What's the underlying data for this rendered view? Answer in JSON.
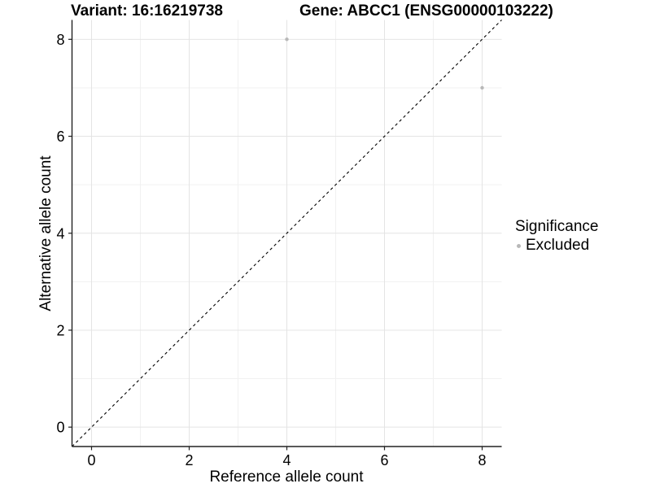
{
  "header": {
    "variant_title": "Variant: 16:16219738",
    "gene_title": "Gene: ABCC1 (ENSG00000103222)"
  },
  "axes": {
    "x_label": "Reference allele count",
    "y_label": "Alternative allele count"
  },
  "legend": {
    "title": "Significance",
    "items": [
      {
        "label": "Excluded",
        "color": "#b8b8b8"
      }
    ]
  },
  "chart_data": {
    "type": "scatter",
    "title": "Variant: 16:16219738 | Gene: ABCC1 (ENSG00000103222)",
    "xlabel": "Reference allele count",
    "ylabel": "Alternative allele count",
    "xlim": [
      -0.4,
      8.4
    ],
    "ylim": [
      -0.4,
      8.4
    ],
    "xticks": [
      0,
      2,
      4,
      6,
      8
    ],
    "yticks": [
      0,
      2,
      4,
      6,
      8
    ],
    "minor_xticks": [
      1,
      3,
      5,
      7
    ],
    "minor_yticks": [
      1,
      3,
      5,
      7
    ],
    "grid": "major and minor, light grey on white",
    "legend_title": "Significance",
    "legend_position": "right",
    "series": [
      {
        "name": "Excluded",
        "marker": "circle",
        "color": "#b8b8b8",
        "points": [
          [
            4,
            8
          ],
          [
            8,
            7
          ]
        ]
      }
    ],
    "reference_line": {
      "kind": "identity",
      "slope": 1,
      "intercept": 0,
      "linestyle": "dashed",
      "color": "#000000"
    }
  },
  "style": {
    "background": "#ffffff",
    "point_color": "#b8b8b8",
    "point_radius": 2.2,
    "grid_major_color": "#e4e4e4",
    "grid_minor_color": "#f1f1f1",
    "axis_line_color": "#222222",
    "tick_text_color": "#000000",
    "dashed_line_color": "#000000"
  }
}
